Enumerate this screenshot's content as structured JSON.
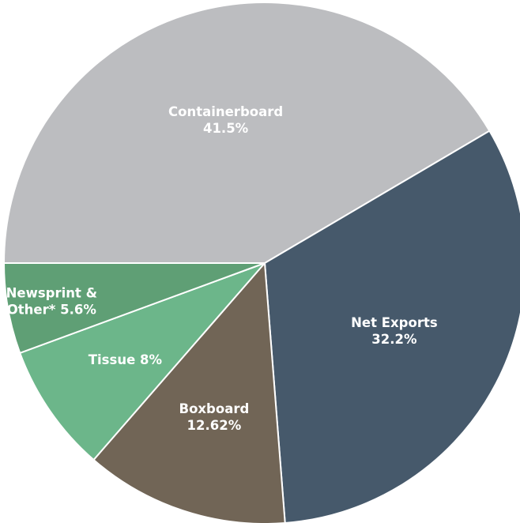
{
  "chart_data": {
    "type": "pie",
    "title": "",
    "slices": [
      {
        "name": "Containerboard",
        "value": 41.5,
        "label_lines": [
          "Containerboard",
          "41.5%"
        ],
        "color": "#bcbdc0"
      },
      {
        "name": "Net Exports",
        "value": 32.2,
        "label_lines": [
          "Net Exports",
          "32.2%"
        ],
        "color": "#46596b"
      },
      {
        "name": "Boxboard",
        "value": 12.62,
        "label_lines": [
          "Boxboard",
          "12.62%"
        ],
        "color": "#716556"
      },
      {
        "name": "Tissue",
        "value": 8,
        "label_lines": [
          "Tissue 8%"
        ],
        "color": "#6cb68a"
      },
      {
        "name": "Newsprint & Other*",
        "value": 5.6,
        "label_lines": [
          "Newsprint &",
          "Other* 5.6%"
        ],
        "color": "#5f9f75"
      }
    ],
    "start_angle_deg": 180,
    "direction": "clockwise",
    "legend": "none",
    "labels": "inside"
  }
}
